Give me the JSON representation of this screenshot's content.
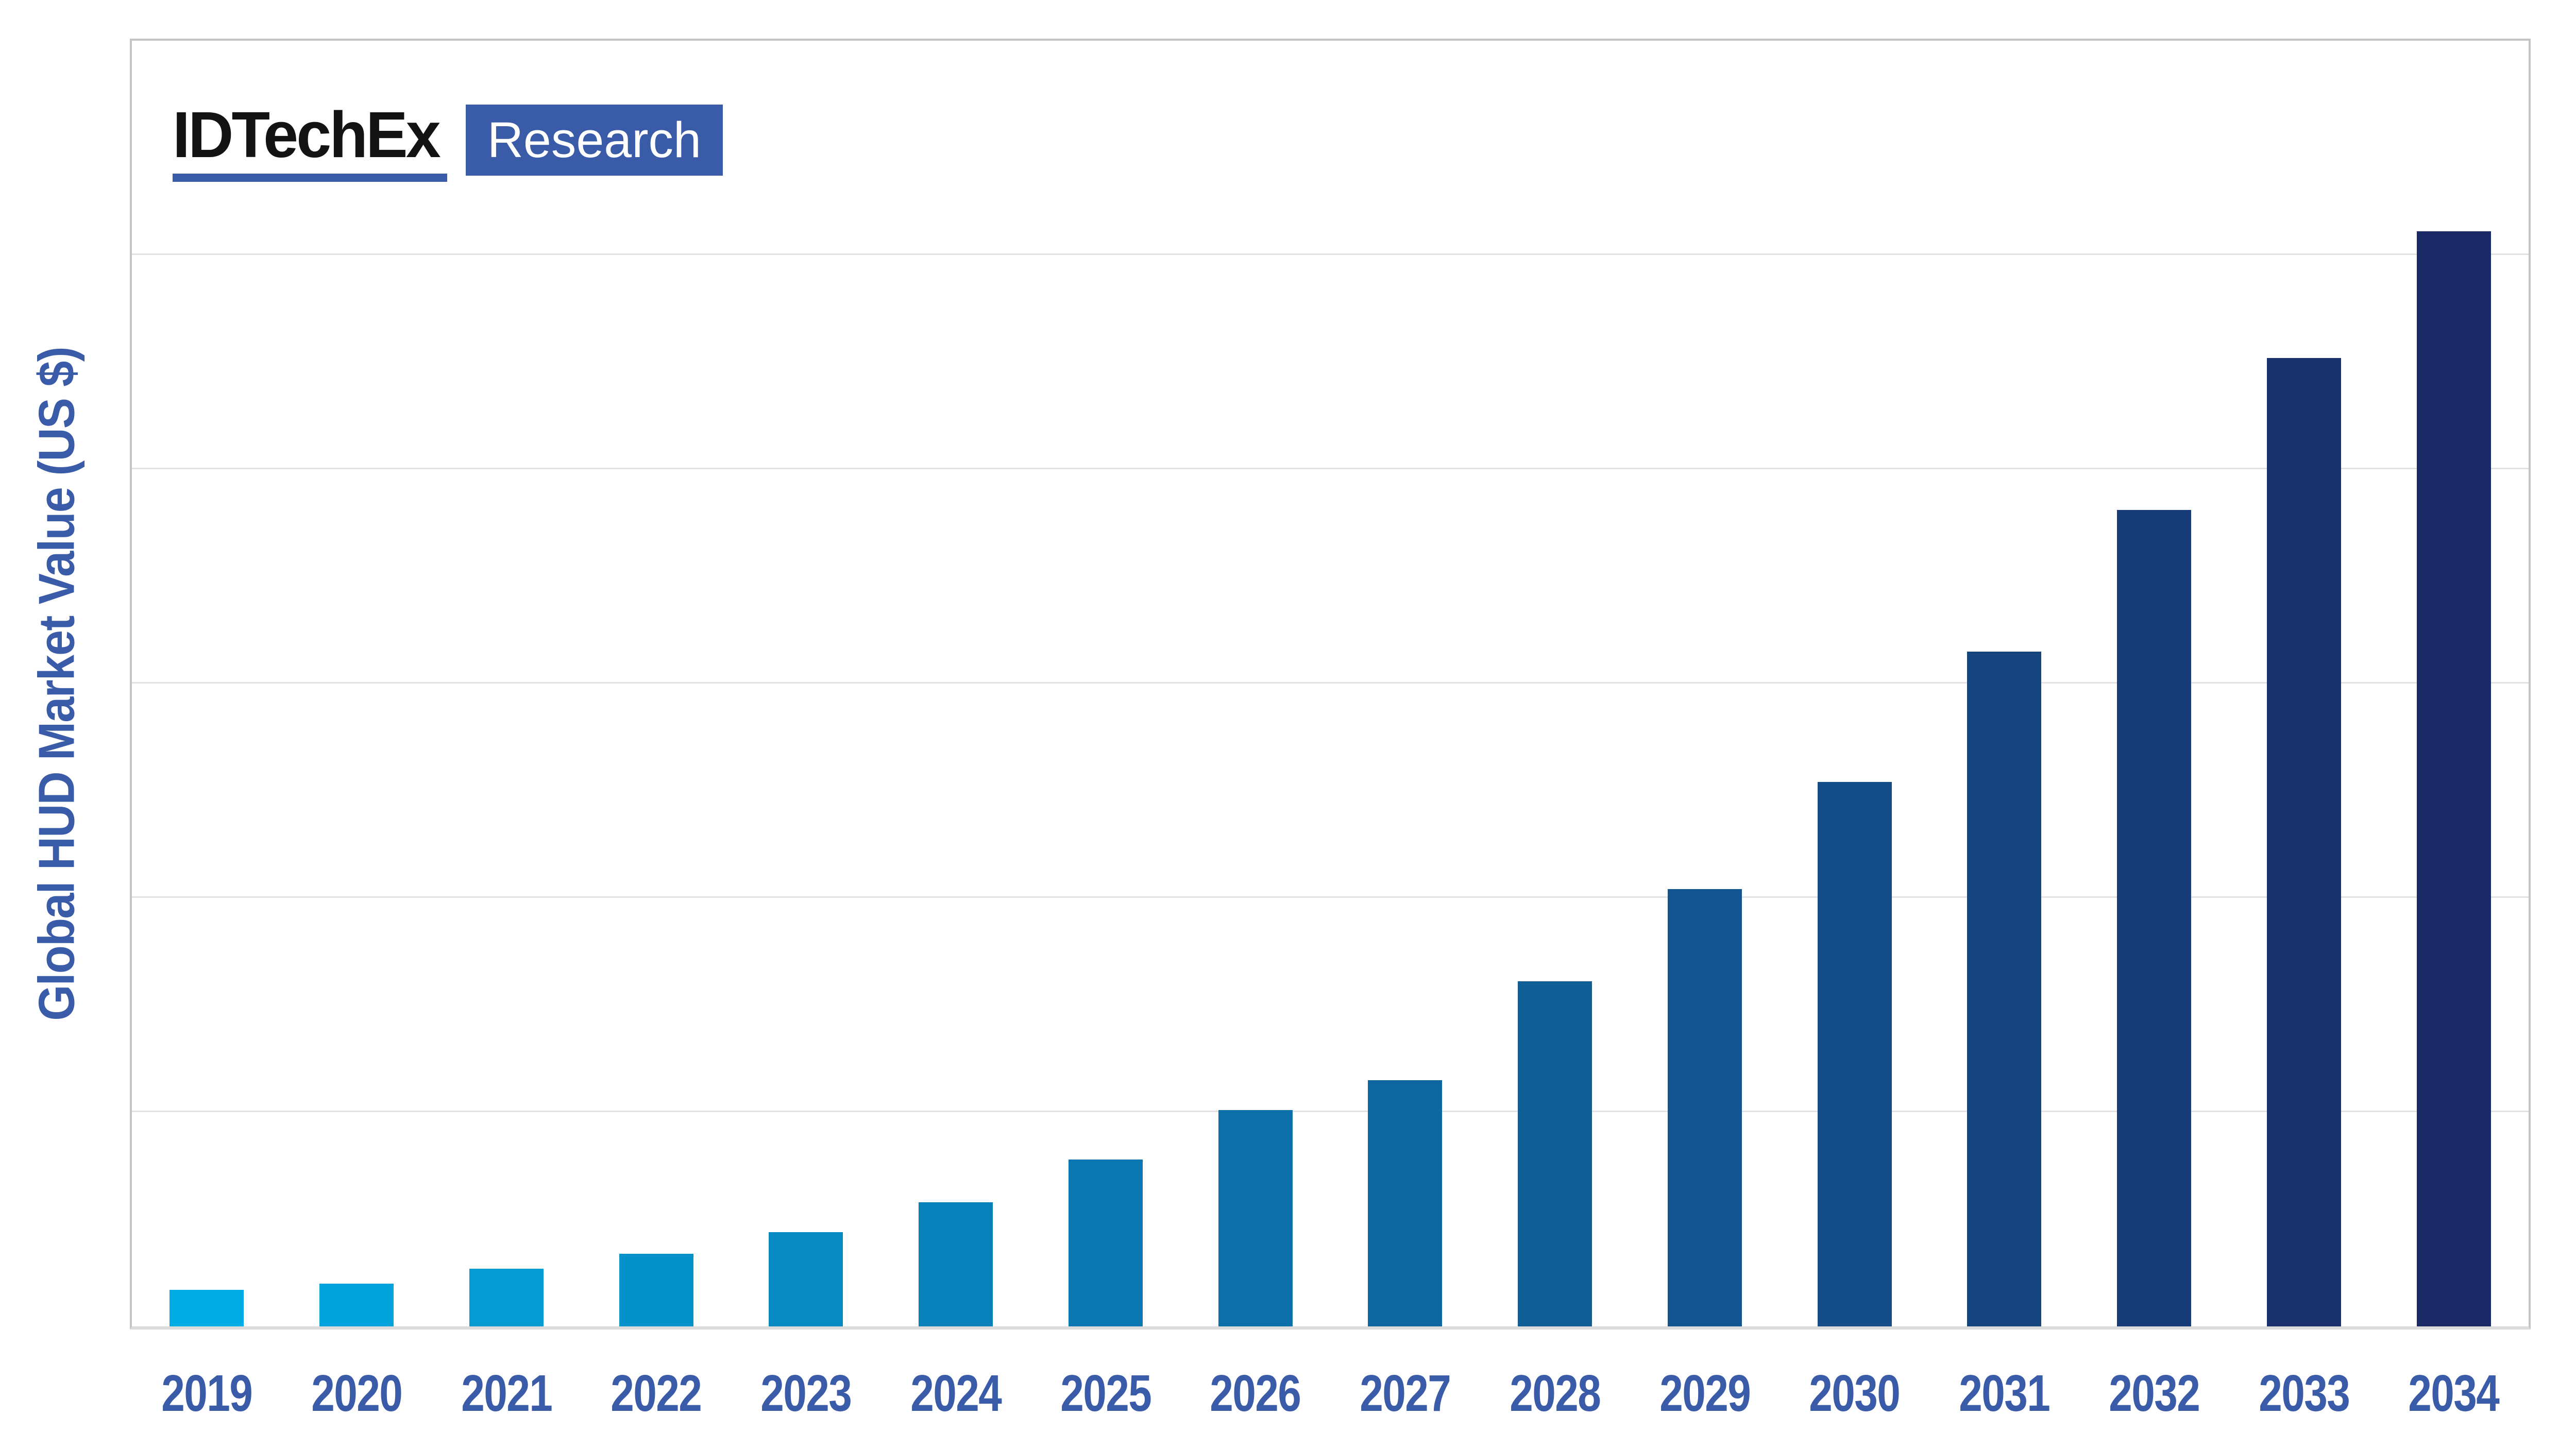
{
  "logo": {
    "brand_text": "IDTechEx",
    "badge_text": "Research"
  },
  "chart_data": {
    "type": "bar",
    "title": "",
    "xlabel": "",
    "ylabel": "Global HUD Market Value (US $)",
    "categories": [
      "2019",
      "2020",
      "2021",
      "2022",
      "2023",
      "2024",
      "2025",
      "2026",
      "2027",
      "2028",
      "2029",
      "2030",
      "2031",
      "2032",
      "2033",
      "2034"
    ],
    "values": [
      0.17,
      0.2,
      0.27,
      0.34,
      0.44,
      0.58,
      0.78,
      1.01,
      1.15,
      1.61,
      2.04,
      2.54,
      3.15,
      3.81,
      4.52,
      5.11
    ],
    "value_units": "relative height, 1.0 = one gridline interval (y axis has no numeric tick labels)",
    "ylim": [
      0,
      6.0
    ],
    "y_tick_labels": [],
    "gridline_count": 5,
    "grid": "horizontal",
    "legend": "none",
    "bar_colors": [
      "#00ACE4",
      "#02A3DC",
      "#049BD3",
      "#0592CB",
      "#0789C2",
      "#0981BA",
      "#0B78B2",
      "#0D6FA9",
      "#0E67A1",
      "#105E98",
      "#125590",
      "#144D88",
      "#16447F",
      "#173B77",
      "#19326E",
      "#1B2A66"
    ]
  },
  "colors": {
    "brand_blue": "#3A5BA8",
    "axis_text": "#3A5BA8",
    "logo_text": "#131313",
    "logo_badge_text": "#FFFFFF",
    "gridline": "#E2E2E2",
    "plot_border": "#C4C4C4",
    "baseline": "#DBDBDB",
    "background": "#FFFFFF"
  }
}
